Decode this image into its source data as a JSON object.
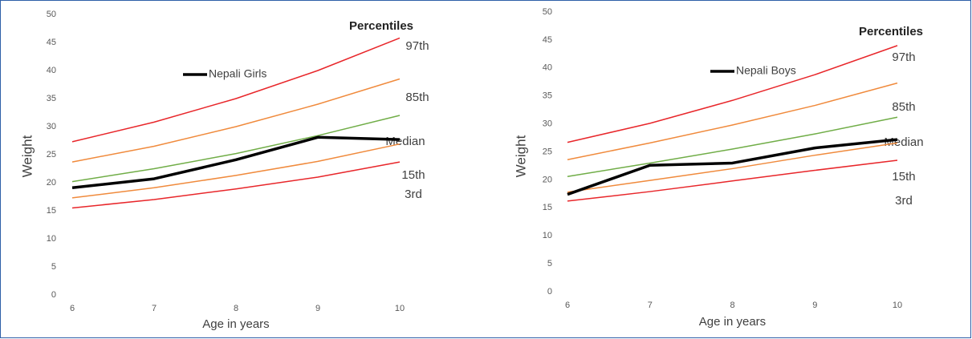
{
  "chart_data": [
    {
      "type": "line",
      "xlabel": "Age in years",
      "ylabel": "Weight",
      "legend_title": "Percentiles",
      "x": [
        6,
        7,
        8,
        9,
        10
      ],
      "xlim": [
        6,
        10
      ],
      "xticks": [
        6,
        7,
        8,
        9,
        10
      ],
      "ylim": [
        0,
        50
      ],
      "yticks": [
        0,
        5,
        10,
        15,
        20,
        25,
        30,
        35,
        40,
        45,
        50
      ],
      "grid": false,
      "series": [
        {
          "name": "97th",
          "color": "#e8262a",
          "values": [
            27.3,
            30.8,
            35,
            40,
            45.8
          ]
        },
        {
          "name": "85th",
          "color": "#f08a3c",
          "values": [
            23.7,
            26.5,
            30,
            34,
            38.5
          ]
        },
        {
          "name": "Median",
          "color": "#70ad47",
          "values": [
            20.2,
            22.5,
            25.2,
            28.4,
            32
          ]
        },
        {
          "name": "15th",
          "color": "#f08a3c",
          "values": [
            17.3,
            19.1,
            21.3,
            23.8,
            26.9
          ]
        },
        {
          "name": "3rd",
          "color": "#e8262a",
          "values": [
            15.5,
            17,
            18.9,
            21,
            23.7
          ]
        },
        {
          "name": "Nepali Girls",
          "color": "#000000",
          "values": [
            19.1,
            20.7,
            24.1,
            28.1,
            27.7
          ]
        }
      ]
    },
    {
      "type": "line",
      "xlabel": "Age in years",
      "ylabel": "Weight",
      "legend_title": "Percentiles",
      "x": [
        6,
        7,
        8,
        9,
        10
      ],
      "xlim": [
        6,
        10
      ],
      "xticks": [
        6,
        7,
        8,
        9,
        10
      ],
      "ylim": [
        0,
        50
      ],
      "yticks": [
        0,
        5,
        10,
        15,
        20,
        25,
        30,
        35,
        40,
        45,
        50
      ],
      "grid": false,
      "series": [
        {
          "name": "97th",
          "color": "#e8262a",
          "values": [
            26.7,
            30.1,
            34.2,
            38.8,
            44
          ]
        },
        {
          "name": "85th",
          "color": "#f08a3c",
          "values": [
            23.6,
            26.6,
            29.8,
            33.3,
            37.3
          ]
        },
        {
          "name": "Median",
          "color": "#70ad47",
          "values": [
            20.6,
            23,
            25.5,
            28.2,
            31.2
          ]
        },
        {
          "name": "15th",
          "color": "#f08a3c",
          "values": [
            17.8,
            19.9,
            22,
            24.4,
            26.6
          ]
        },
        {
          "name": "3rd",
          "color": "#e8262a",
          "values": [
            16.2,
            17.9,
            19.8,
            21.7,
            23.5
          ]
        },
        {
          "name": "Nepali Boys",
          "color": "#000000",
          "values": [
            17.4,
            22.6,
            23,
            25.7,
            27.2
          ]
        }
      ]
    }
  ]
}
